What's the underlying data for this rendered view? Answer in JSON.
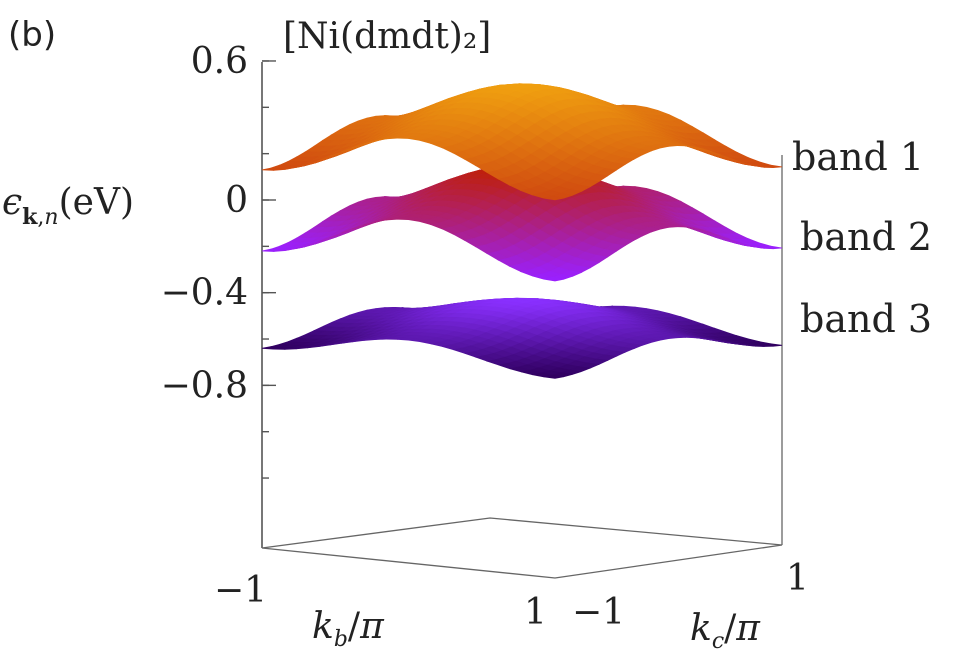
{
  "panel_label": "(b)",
  "chart_data": {
    "type": "surface",
    "title": "[Ni(dmdt)₂]",
    "zlabel": "ϵ_{k,n}(eV)",
    "xlabel": "k_b/π",
    "ylabel": "k_c/π",
    "zlim": [
      -1.3,
      0.6
    ],
    "z_ticks": [
      {
        "value": 0.6,
        "label": "0.6"
      },
      {
        "value": 0,
        "label": "0"
      },
      {
        "value": -0.4,
        "label": "−0.4"
      },
      {
        "value": -0.8,
        "label": "−0.8"
      }
    ],
    "x_ticks": [
      {
        "value": -1,
        "label": "−1"
      },
      {
        "value": 1,
        "label": "1"
      }
    ],
    "y_ticks": [
      {
        "value": -1,
        "label": "−1"
      },
      {
        "value": 1,
        "label": "1"
      }
    ],
    "series": [
      {
        "name": "band 1",
        "center": 0.31,
        "amp_b": 0.1,
        "amp_c": 0.08,
        "color_low": "#d04a10",
        "color_high": "#f0a010"
      },
      {
        "name": "band 2",
        "center": -0.04,
        "amp_b": 0.1,
        "amp_c": 0.08,
        "color_low": "#9a20ff",
        "color_high": "#c02000"
      },
      {
        "name": "band 3",
        "center": -0.54,
        "amp_b": 0.05,
        "amp_c": 0.05,
        "color_low": "#300060",
        "color_high": "#8a30ff"
      }
    ]
  }
}
